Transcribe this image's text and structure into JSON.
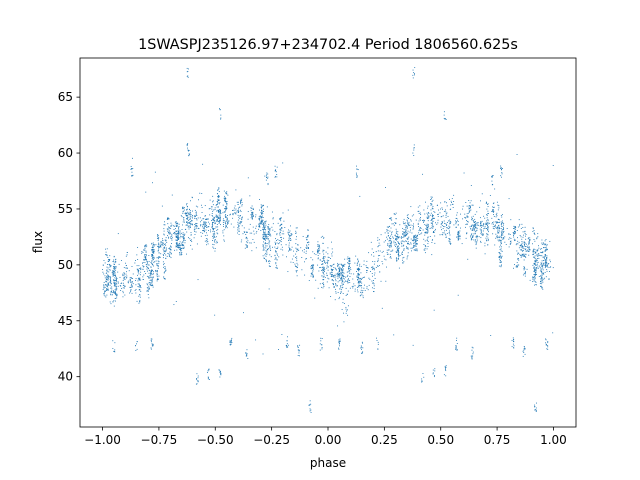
{
  "chart_data": {
    "type": "scatter",
    "title": "1SWASPJ235126.97+234702.4 Period 1806560.625s",
    "xlabel": "phase",
    "ylabel": "flux",
    "xlim": [
      -1.1,
      1.1
    ],
    "ylim": [
      35.5,
      68.5
    ],
    "x_ticks": [
      -1.0,
      -0.75,
      -0.5,
      -0.25,
      0.0,
      0.25,
      0.5,
      0.75,
      1.0
    ],
    "x_tick_labels": [
      "−1.00",
      "−0.75",
      "−0.50",
      "−0.25",
      "0.00",
      "0.25",
      "0.50",
      "0.75",
      "1.00"
    ],
    "y_ticks": [
      40,
      45,
      50,
      55,
      60,
      65
    ],
    "y_tick_labels": [
      "40",
      "45",
      "50",
      "55",
      "60",
      "65"
    ],
    "grid": false,
    "legend": "none",
    "marker_color": "#1f77b4",
    "series": [
      {
        "description_of_shape": "phase-folded light curve, mirrored at phase -1..0 and 0..1",
        "profile": {
          "phase": [
            0.0,
            0.05,
            0.1,
            0.15,
            0.2,
            0.25,
            0.3,
            0.35,
            0.4,
            0.45,
            0.5,
            0.55,
            0.6,
            0.65,
            0.7,
            0.75,
            0.8,
            0.85,
            0.9,
            0.95,
            1.0
          ],
          "flux": [
            49.5,
            48.8,
            48.5,
            49.0,
            49.8,
            50.8,
            52.0,
            53.0,
            53.5,
            53.8,
            54.2,
            54.5,
            54.0,
            53.6,
            53.2,
            52.8,
            52.3,
            51.5,
            50.8,
            50.2,
            49.5
          ]
        },
        "clusters": [
          {
            "phase": -0.95,
            "flux": 42.7
          },
          {
            "phase": -0.85,
            "flux": 42.6
          },
          {
            "phase": -0.78,
            "flux": 42.9
          },
          {
            "phase": -0.58,
            "flux": 39.8
          },
          {
            "phase": -0.53,
            "flux": 40.3
          },
          {
            "phase": -0.48,
            "flux": 40.5
          },
          {
            "phase": -0.43,
            "flux": 42.9
          },
          {
            "phase": -0.36,
            "flux": 42.1
          },
          {
            "phase": -0.18,
            "flux": 43.1
          },
          {
            "phase": -0.13,
            "flux": 42.3
          },
          {
            "phase": -0.08,
            "flux": 37.3
          },
          {
            "phase": -0.03,
            "flux": 42.9
          },
          {
            "phase": 0.05,
            "flux": 42.9
          },
          {
            "phase": 0.15,
            "flux": 42.6
          },
          {
            "phase": 0.22,
            "flux": 42.9
          },
          {
            "phase": 0.42,
            "flux": 39.8
          },
          {
            "phase": 0.47,
            "flux": 40.3
          },
          {
            "phase": 0.52,
            "flux": 40.5
          },
          {
            "phase": 0.57,
            "flux": 42.9
          },
          {
            "phase": 0.64,
            "flux": 42.1
          },
          {
            "phase": 0.82,
            "flux": 43.1
          },
          {
            "phase": 0.87,
            "flux": 42.3
          },
          {
            "phase": 0.92,
            "flux": 37.3
          },
          {
            "phase": 0.97,
            "flux": 42.9
          },
          {
            "phase": -0.87,
            "flux": 58.3
          },
          {
            "phase": 0.13,
            "flux": 58.3
          },
          {
            "phase": -0.27,
            "flux": 57.7
          },
          {
            "phase": -0.23,
            "flux": 58.3
          },
          {
            "phase": 0.73,
            "flux": 57.7
          },
          {
            "phase": 0.77,
            "flux": 58.3
          },
          {
            "phase": -0.62,
            "flux": 60.3
          },
          {
            "phase": 0.38,
            "flux": 60.3
          },
          {
            "phase": -0.62,
            "flux": 67.2
          },
          {
            "phase": 0.38,
            "flux": 67.2
          },
          {
            "phase": -0.48,
            "flux": 63.5
          },
          {
            "phase": 0.52,
            "flux": 63.5
          }
        ]
      }
    ]
  }
}
